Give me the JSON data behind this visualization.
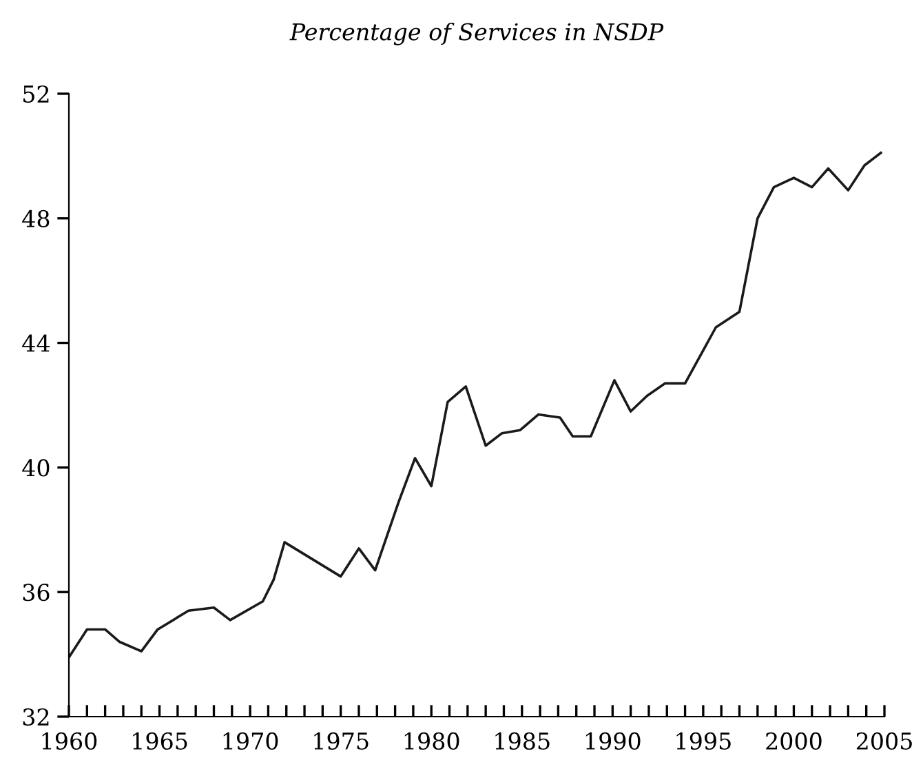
{
  "chart_data": {
    "type": "line",
    "title": "Percentage of Services in NSDP",
    "x": [
      1960.0,
      1961.0,
      1962.0,
      1962.8,
      1964.0,
      1964.9,
      1966.6,
      1968.0,
      1968.9,
      1970.7,
      1971.3,
      1971.9,
      1975.0,
      1976.0,
      1976.9,
      1978.2,
      1979.1,
      1980.0,
      1980.9,
      1981.9,
      1983.0,
      1983.9,
      1984.9,
      1985.9,
      1987.1,
      1987.8,
      1988.8,
      1990.1,
      1991.0,
      1991.9,
      1992.9,
      1994.0,
      1995.7,
      1997.0,
      1998.0,
      1998.9,
      2000.0,
      2001.0,
      2001.9,
      2003.0,
      2003.9,
      2004.8
    ],
    "series": [
      {
        "color": "#1a1a1a",
        "values": [
          33.9,
          34.8,
          34.8,
          34.4,
          34.1,
          34.8,
          35.4,
          35.5,
          35.1,
          35.7,
          36.4,
          37.6,
          36.5,
          37.4,
          36.7,
          38.9,
          40.3,
          39.4,
          42.1,
          42.6,
          40.7,
          41.1,
          41.2,
          41.7,
          41.6,
          41.0,
          41.0,
          42.8,
          41.8,
          42.3,
          42.7,
          42.7,
          44.5,
          45.0,
          48.0,
          49.0,
          49.3,
          49.0,
          49.6,
          48.9,
          49.7,
          50.1
        ]
      }
    ],
    "xlim": [
      1960,
      2005
    ],
    "ylim": [
      32,
      52
    ],
    "xticks": [
      1960,
      {
        "value": 1961,
        "label": null
      },
      {
        "value": 1962,
        "label": null
      },
      {
        "value": 1963,
        "label": null
      },
      {
        "value": 1964,
        "label": null
      },
      1965,
      {
        "value": 1966,
        "label": null
      },
      {
        "value": 1967,
        "label": null
      },
      {
        "value": 1968,
        "label": null
      },
      {
        "value": 1969,
        "label": null
      },
      1970,
      {
        "value": 1971,
        "label": null
      },
      {
        "value": 1972,
        "label": null
      },
      {
        "value": 1973,
        "label": null
      },
      {
        "value": 1974,
        "label": null
      },
      1975,
      {
        "value": 1976,
        "label": null
      },
      {
        "value": 1977,
        "label": null
      },
      {
        "value": 1978,
        "label": null
      },
      {
        "value": 1979,
        "label": null
      },
      1980,
      {
        "value": 1981,
        "label": null
      },
      {
        "value": 1982,
        "label": null
      },
      {
        "value": 1983,
        "label": null
      },
      {
        "value": 1984,
        "label": null
      },
      1985,
      {
        "value": 1986,
        "label": null
      },
      {
        "value": 1987,
        "label": null
      },
      {
        "value": 1988,
        "label": null
      },
      {
        "value": 1989,
        "label": null
      },
      1990,
      {
        "value": 1991,
        "label": null
      },
      {
        "value": 1992,
        "label": null
      },
      {
        "value": 1993,
        "label": null
      },
      {
        "value": 1994,
        "label": null
      },
      1995,
      {
        "value": 1996,
        "label": null
      },
      {
        "value": 1997,
        "label": null
      },
      {
        "value": 1998,
        "label": null
      },
      {
        "value": 1999,
        "label": null
      },
      2000,
      {
        "value": 2001,
        "label": null
      },
      {
        "value": 2002,
        "label": null
      },
      {
        "value": 2003,
        "label": null
      },
      {
        "value": 2004,
        "label": null
      },
      2005
    ],
    "yticks": [
      32,
      36,
      40,
      44,
      48,
      52
    ],
    "grid": false,
    "legend": false,
    "marker": "none",
    "line_style": "solid"
  }
}
